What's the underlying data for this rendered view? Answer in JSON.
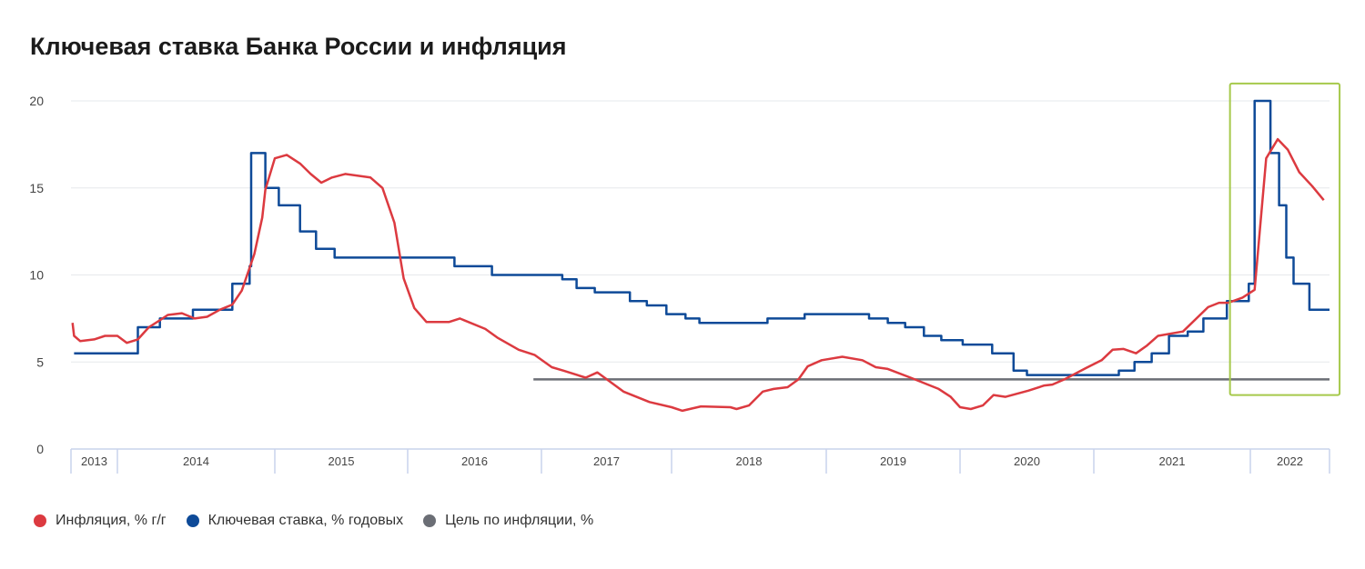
{
  "chart_data": {
    "type": "line",
    "title": "Ключевая ставка Банка России и инфляция",
    "xlabel": "",
    "ylabel": "",
    "ylim": [
      0,
      20
    ],
    "yticks": [
      0,
      5,
      10,
      15,
      20
    ],
    "xlim": [
      2013.7,
      2022.55
    ],
    "grid": true,
    "legend_position": "bottom-left",
    "year_cells": [
      {
        "label": "2013",
        "from": 2013.7,
        "to": 2014
      },
      {
        "label": "2014",
        "from": 2014,
        "to": 2015
      },
      {
        "label": "2015",
        "from": 2015,
        "to": 2016
      },
      {
        "label": "2016",
        "from": 2016,
        "to": 2017
      },
      {
        "label": "2017",
        "from": 2017,
        "to": 2018
      },
      {
        "label": "2018",
        "from": 2018,
        "to": 2019
      },
      {
        "label": "2019",
        "from": 2019,
        "to": 2020
      },
      {
        "label": "2020",
        "from": 2020,
        "to": 2021
      },
      {
        "label": "2021",
        "from": 2021,
        "to": 2022
      },
      {
        "label": "2022",
        "from": 2022,
        "to": 2022.55
      }
    ],
    "series": [
      {
        "name": "Инфляция, % г/г",
        "color": "#dc3a40",
        "kind": "line",
        "points": [
          [
            2013.71,
            7.25
          ],
          [
            2013.72,
            6.5
          ],
          [
            2013.76,
            6.2
          ],
          [
            2013.85,
            6.3
          ],
          [
            2013.92,
            6.5
          ],
          [
            2014.0,
            6.5
          ],
          [
            2014.06,
            6.1
          ],
          [
            2014.13,
            6.3
          ],
          [
            2014.2,
            7.0
          ],
          [
            2014.27,
            7.4
          ],
          [
            2014.32,
            7.7
          ],
          [
            2014.41,
            7.8
          ],
          [
            2014.49,
            7.5
          ],
          [
            2014.57,
            7.6
          ],
          [
            2014.65,
            8.0
          ],
          [
            2014.73,
            8.3
          ],
          [
            2014.79,
            9.1
          ],
          [
            2014.87,
            11.2
          ],
          [
            2014.92,
            13.3
          ],
          [
            2014.94,
            14.9
          ],
          [
            2015.0,
            16.7
          ],
          [
            2015.09,
            16.9
          ],
          [
            2015.19,
            16.4
          ],
          [
            2015.27,
            15.8
          ],
          [
            2015.35,
            15.3
          ],
          [
            2015.43,
            15.6
          ],
          [
            2015.53,
            15.8
          ],
          [
            2015.72,
            15.6
          ],
          [
            2015.81,
            15.0
          ],
          [
            2015.9,
            13.0
          ],
          [
            2015.97,
            9.8
          ],
          [
            2016.05,
            8.1
          ],
          [
            2016.14,
            7.3
          ],
          [
            2016.31,
            7.3
          ],
          [
            2016.39,
            7.5
          ],
          [
            2016.58,
            6.9
          ],
          [
            2016.67,
            6.4
          ],
          [
            2016.83,
            5.7
          ],
          [
            2016.95,
            5.4
          ],
          [
            2017.08,
            4.7
          ],
          [
            2017.17,
            4.5
          ],
          [
            2017.34,
            4.1
          ],
          [
            2017.43,
            4.4
          ],
          [
            2017.63,
            3.3
          ],
          [
            2017.83,
            2.7
          ],
          [
            2018.0,
            2.4
          ],
          [
            2018.07,
            2.2
          ],
          [
            2018.19,
            2.45
          ],
          [
            2018.38,
            2.4
          ],
          [
            2018.42,
            2.3
          ],
          [
            2018.5,
            2.5
          ],
          [
            2018.59,
            3.3
          ],
          [
            2018.66,
            3.45
          ],
          [
            2018.75,
            3.55
          ],
          [
            2018.82,
            4.0
          ],
          [
            2018.88,
            4.75
          ],
          [
            2018.97,
            5.1
          ],
          [
            2019.12,
            5.3
          ],
          [
            2019.27,
            5.1
          ],
          [
            2019.37,
            4.7
          ],
          [
            2019.46,
            4.6
          ],
          [
            2019.63,
            4.1
          ],
          [
            2019.84,
            3.45
          ],
          [
            2019.93,
            3.0
          ],
          [
            2020.0,
            2.4
          ],
          [
            2020.08,
            2.3
          ],
          [
            2020.17,
            2.5
          ],
          [
            2020.25,
            3.1
          ],
          [
            2020.34,
            3.0
          ],
          [
            2020.51,
            3.35
          ],
          [
            2020.63,
            3.65
          ],
          [
            2020.69,
            3.7
          ],
          [
            2020.78,
            4.0
          ],
          [
            2020.94,
            4.65
          ],
          [
            2021.05,
            5.1
          ],
          [
            2021.12,
            5.7
          ],
          [
            2021.19,
            5.75
          ],
          [
            2021.27,
            5.5
          ],
          [
            2021.34,
            5.95
          ],
          [
            2021.41,
            6.5
          ],
          [
            2021.57,
            6.75
          ],
          [
            2021.73,
            8.15
          ],
          [
            2021.8,
            8.4
          ],
          [
            2021.86,
            8.4
          ],
          [
            2021.95,
            8.7
          ],
          [
            2022.03,
            9.15
          ],
          [
            2022.11,
            16.7
          ],
          [
            2022.19,
            17.8
          ],
          [
            2022.26,
            17.2
          ],
          [
            2022.34,
            15.9
          ],
          [
            2022.43,
            15.1
          ],
          [
            2022.51,
            14.3
          ]
        ]
      },
      {
        "name": "Ключевая ставка, % годовых",
        "color": "#0e4a98",
        "kind": "step",
        "end": 2022.55,
        "points": [
          [
            2013.72,
            5.5
          ],
          [
            2014.13,
            7.0
          ],
          [
            2014.27,
            7.5
          ],
          [
            2014.48,
            8.0
          ],
          [
            2014.73,
            9.5
          ],
          [
            2014.84,
            10.5
          ],
          [
            2014.85,
            17.0
          ],
          [
            2014.94,
            15.0
          ],
          [
            2015.03,
            14.0
          ],
          [
            2015.19,
            12.5
          ],
          [
            2015.31,
            11.5
          ],
          [
            2015.45,
            11.0
          ],
          [
            2016.35,
            10.5
          ],
          [
            2016.63,
            10.0
          ],
          [
            2017.16,
            9.75
          ],
          [
            2017.27,
            9.25
          ],
          [
            2017.41,
            9.0
          ],
          [
            2017.68,
            8.5
          ],
          [
            2017.81,
            8.25
          ],
          [
            2017.96,
            7.75
          ],
          [
            2018.09,
            7.5
          ],
          [
            2018.18,
            7.25
          ],
          [
            2018.62,
            7.5
          ],
          [
            2018.86,
            7.75
          ],
          [
            2019.32,
            7.5
          ],
          [
            2019.46,
            7.25
          ],
          [
            2019.59,
            7.0
          ],
          [
            2019.73,
            6.5
          ],
          [
            2019.86,
            6.25
          ],
          [
            2020.02,
            6.0
          ],
          [
            2020.24,
            5.5
          ],
          [
            2020.4,
            4.5
          ],
          [
            2020.5,
            4.25
          ],
          [
            2021.16,
            4.5
          ],
          [
            2021.26,
            5.0
          ],
          [
            2021.37,
            5.5
          ],
          [
            2021.48,
            6.5
          ],
          [
            2021.6,
            6.75
          ],
          [
            2021.7,
            7.5
          ],
          [
            2021.85,
            8.5
          ],
          [
            2021.99,
            9.5
          ],
          [
            2022.03,
            20.0
          ],
          [
            2022.14,
            17.0
          ],
          [
            2022.2,
            14.0
          ],
          [
            2022.25,
            11.0
          ],
          [
            2022.3,
            9.5
          ],
          [
            2022.41,
            8.0
          ]
        ]
      },
      {
        "name": "Цель по инфляции, %",
        "color": "#6b6e75",
        "kind": "line",
        "points": [
          [
            2016.94,
            4.0
          ],
          [
            2022.55,
            4.0
          ]
        ]
      }
    ],
    "highlight_box": {
      "x": [
        2021.87,
        2022.62
      ],
      "y": [
        3.1,
        21.0
      ],
      "color": "#a6c94b"
    }
  }
}
